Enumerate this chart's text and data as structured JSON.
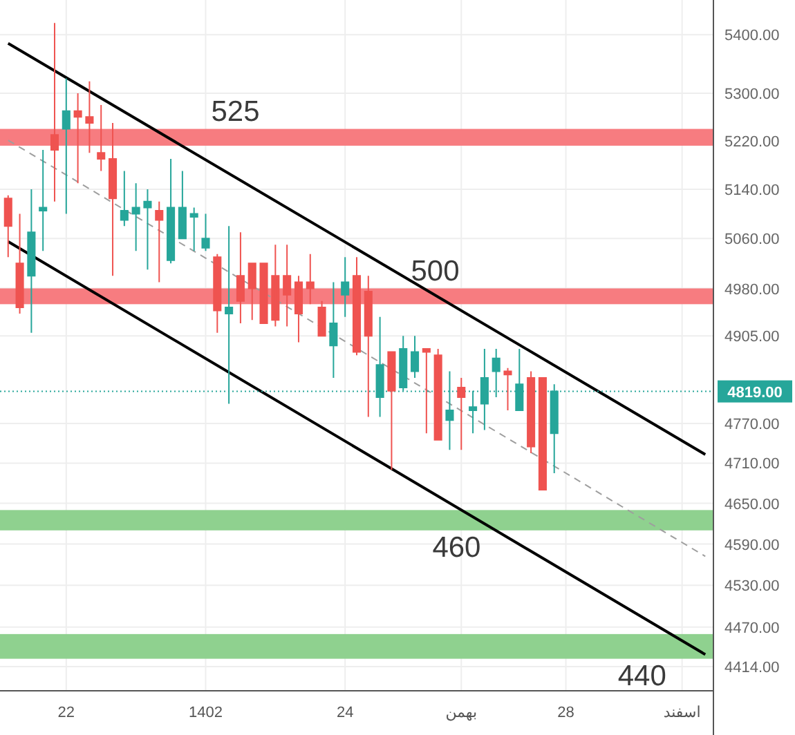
{
  "chart_data": {
    "type": "candlestick",
    "categories": [
      null,
      null,
      null,
      null,
      null,
      "22",
      null,
      null,
      null,
      null,
      null,
      null,
      null,
      null,
      null,
      null,
      null,
      "1402",
      null,
      null,
      null,
      null,
      null,
      null,
      null,
      null,
      null,
      null,
      null,
      "24",
      null,
      null,
      null,
      null,
      null,
      null,
      null,
      null,
      null,
      "بهمن",
      null,
      null,
      null,
      null,
      null,
      null,
      null,
      null,
      "28",
      null,
      null,
      null,
      null,
      null,
      null,
      null,
      null,
      null,
      "اسفند",
      null,
      null
    ],
    "ohlc": [
      [
        5125,
        5130,
        5030,
        5080
      ],
      [
        5020,
        5100,
        4940,
        4950
      ],
      [
        5000,
        5140,
        4910,
        5070
      ],
      [
        5105,
        5205,
        5040,
        5110
      ],
      [
        5230,
        5420,
        5120,
        5205
      ],
      [
        5240,
        5325,
        5100,
        5270
      ],
      [
        5270,
        5300,
        5150,
        5260
      ],
      [
        5260,
        5320,
        5200,
        5250
      ],
      [
        5200,
        5280,
        5170,
        5190
      ],
      [
        5190,
        5250,
        5000,
        5125
      ],
      [
        5090,
        5170,
        5080,
        5105
      ],
      [
        5100,
        5150,
        5040,
        5110
      ],
      [
        5110,
        5140,
        5010,
        5120
      ],
      [
        5105,
        5120,
        4990,
        5090
      ],
      [
        5025,
        5190,
        5020,
        5110
      ],
      [
        5060,
        5170,
        5060,
        5110
      ],
      [
        5095,
        5110,
        5040,
        5100
      ],
      [
        5045,
        5100,
        5040,
        5060
      ],
      [
        5030,
        5035,
        4910,
        4945
      ],
      [
        4940,
        5080,
        4800,
        4950
      ],
      [
        5000,
        5070,
        4925,
        4960
      ],
      [
        5020,
        5020,
        4930,
        4980
      ],
      [
        5020,
        5020,
        4925,
        4925
      ],
      [
        5000,
        5050,
        4920,
        4930
      ],
      [
        5000,
        5050,
        4920,
        4970
      ],
      [
        4990,
        5000,
        4895,
        4940
      ],
      [
        4990,
        5035,
        4955,
        4980
      ],
      [
        4950,
        4960,
        4905,
        4905
      ],
      [
        4890,
        4990,
        4840,
        4925
      ],
      [
        4970,
        5030,
        4935,
        4990
      ],
      [
        5000,
        5030,
        4875,
        4880
      ],
      [
        4975,
        5000,
        4780,
        4905
      ],
      [
        4810,
        4935,
        4780,
        4860
      ],
      [
        4880,
        4880,
        4700,
        4820
      ],
      [
        4825,
        4905,
        4820,
        4885
      ],
      [
        4850,
        4905,
        4840,
        4880
      ],
      [
        4885,
        4885,
        4755,
        4880
      ],
      [
        4875,
        4885,
        4745,
        4745
      ],
      [
        4775,
        4850,
        4730,
        4790
      ],
      [
        4825,
        4840,
        4730,
        4810
      ],
      [
        4790,
        4820,
        4755,
        4795
      ],
      [
        4800,
        4885,
        4760,
        4840
      ],
      [
        4850,
        4885,
        4810,
        4870
      ],
      [
        4850,
        4855,
        4790,
        4845
      ],
      [
        4790,
        4885,
        4790,
        4830
      ],
      [
        4840,
        4850,
        4725,
        4735
      ],
      [
        4840,
        4840,
        4670,
        4670
      ],
      [
        4755,
        4830,
        4695,
        4819
      ],
      null,
      null,
      null,
      null,
      null,
      null,
      null,
      null,
      null,
      null,
      null,
      null,
      null
    ],
    "series": [
      {
        "type": "line",
        "color": "#000000",
        "values": [
          5385,
          null,
          null,
          null,
          null,
          null,
          null,
          null,
          null,
          null,
          null,
          null,
          null,
          null,
          null,
          null,
          null,
          null,
          null,
          null,
          null,
          null,
          null,
          null,
          null,
          null,
          null,
          null,
          null,
          null,
          null,
          null,
          null,
          null,
          null,
          null,
          null,
          null,
          null,
          null,
          null,
          null,
          null,
          null,
          null,
          null,
          null,
          null,
          null,
          null,
          null,
          null,
          null,
          null,
          null,
          null,
          null,
          null,
          null,
          null,
          4723
        ]
      },
      {
        "type": "line",
        "color": "#000000",
        "values": [
          5055,
          null,
          null,
          null,
          null,
          null,
          null,
          null,
          null,
          null,
          null,
          null,
          null,
          null,
          null,
          null,
          null,
          null,
          null,
          null,
          null,
          null,
          null,
          null,
          null,
          null,
          null,
          null,
          null,
          null,
          null,
          null,
          null,
          null,
          null,
          null,
          null,
          null,
          null,
          null,
          null,
          null,
          null,
          null,
          null,
          null,
          null,
          null,
          null,
          null,
          null,
          null,
          null,
          null,
          null,
          null,
          null,
          null,
          null,
          null,
          4431
        ]
      },
      {
        "type": "line",
        "color": "#9e9e9e",
        "line_style": "dashed",
        "values": [
          5221,
          null,
          null,
          null,
          null,
          null,
          null,
          null,
          null,
          null,
          null,
          null,
          null,
          null,
          null,
          null,
          null,
          null,
          null,
          null,
          null,
          null,
          null,
          null,
          null,
          null,
          null,
          null,
          null,
          null,
          null,
          null,
          null,
          null,
          null,
          null,
          null,
          null,
          null,
          null,
          null,
          null,
          null,
          null,
          null,
          null,
          null,
          null,
          null,
          null,
          null,
          null,
          null,
          null,
          null,
          null,
          null,
          null,
          null,
          null,
          4572
        ]
      }
    ],
    "bands": [
      {
        "axis": "y",
        "from": 5212,
        "to": 5240,
        "label": "525",
        "color": "#f77c80"
      },
      {
        "axis": "y",
        "from": 4955,
        "to": 4980,
        "label": "500",
        "color": "#f77c80"
      },
      {
        "axis": "y",
        "from": 4610,
        "to": 4640,
        "label": "460",
        "color": "#8fd18f"
      },
      {
        "axis": "y",
        "from": 4425,
        "to": 4460,
        "label": "440",
        "color": "#8fd18f"
      }
    ],
    "ref_lines": [
      {
        "axis": "y",
        "value": 4819,
        "label": "4819.00",
        "color": "#26a69a",
        "line_style": "dotted"
      }
    ],
    "ylim": [
      4380,
      5460
    ],
    "yticks": [
      {
        "value": 5400,
        "label": "5400.00"
      },
      {
        "value": 5300,
        "label": "5300.00"
      },
      {
        "value": 5220,
        "label": "5220.00"
      },
      {
        "value": 5140,
        "label": "5140.00"
      },
      {
        "value": 5060,
        "label": "5060.00"
      },
      {
        "value": 4980,
        "label": "4980.00"
      },
      {
        "value": 4905,
        "label": "4905.00"
      },
      {
        "value": 4770,
        "label": "4770.00"
      },
      {
        "value": 4710,
        "label": "4710.00"
      },
      {
        "value": 4650,
        "label": "4650.00"
      },
      {
        "value": 4590,
        "label": "4590.00"
      },
      {
        "value": 4530,
        "label": "4530.00"
      },
      {
        "value": 4470,
        "label": "4470.00"
      },
      {
        "value": 4414,
        "label": "4414.00"
      }
    ],
    "log": "y",
    "grid": true
  }
}
